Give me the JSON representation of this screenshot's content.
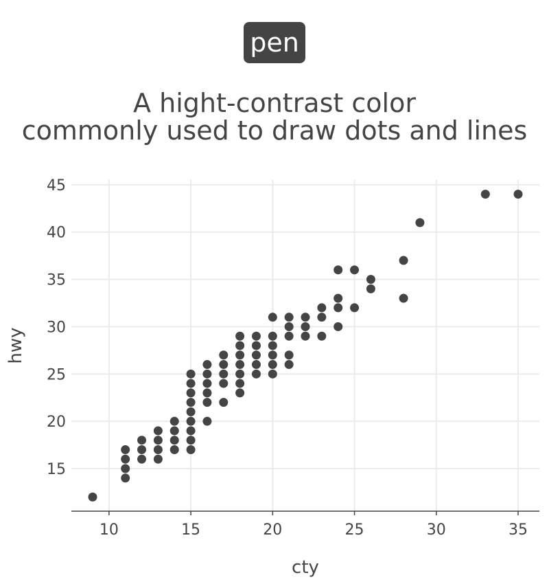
{
  "badge": {
    "label": "pen",
    "color": "#444444"
  },
  "title": {
    "line1": "A hight-contrast color",
    "line2": "commonly used to draw dots and lines"
  },
  "chart_data": {
    "type": "scatter",
    "xlabel": "cty",
    "ylabel": "hwy",
    "xlim": [
      7.7,
      36.3
    ],
    "ylim": [
      10.5,
      45.5
    ],
    "x_ticks": [
      10,
      15,
      20,
      25,
      30,
      35
    ],
    "y_ticks": [
      15,
      20,
      25,
      30,
      35,
      40,
      45
    ],
    "grid": true,
    "point_color": "#444444",
    "points": [
      [
        9,
        12
      ],
      [
        11,
        14
      ],
      [
        11,
        15
      ],
      [
        11,
        16
      ],
      [
        11,
        17
      ],
      [
        12,
        16
      ],
      [
        12,
        17
      ],
      [
        12,
        18
      ],
      [
        13,
        16
      ],
      [
        13,
        17
      ],
      [
        13,
        18
      ],
      [
        13,
        19
      ],
      [
        14,
        17
      ],
      [
        14,
        18
      ],
      [
        14,
        19
      ],
      [
        14,
        20
      ],
      [
        15,
        17
      ],
      [
        15,
        18
      ],
      [
        15,
        19
      ],
      [
        15,
        20
      ],
      [
        15,
        21
      ],
      [
        15,
        22
      ],
      [
        15,
        23
      ],
      [
        15,
        24
      ],
      [
        15,
        25
      ],
      [
        16,
        20
      ],
      [
        16,
        22
      ],
      [
        16,
        23
      ],
      [
        16,
        24
      ],
      [
        16,
        25
      ],
      [
        16,
        26
      ],
      [
        17,
        22
      ],
      [
        17,
        24
      ],
      [
        17,
        25
      ],
      [
        17,
        26
      ],
      [
        17,
        27
      ],
      [
        18,
        23
      ],
      [
        18,
        24
      ],
      [
        18,
        25
      ],
      [
        18,
        26
      ],
      [
        18,
        27
      ],
      [
        18,
        28
      ],
      [
        18,
        29
      ],
      [
        19,
        25
      ],
      [
        19,
        26
      ],
      [
        19,
        27
      ],
      [
        19,
        28
      ],
      [
        19,
        29
      ],
      [
        20,
        25
      ],
      [
        20,
        26
      ],
      [
        20,
        27
      ],
      [
        20,
        28
      ],
      [
        20,
        29
      ],
      [
        20,
        31
      ],
      [
        21,
        26
      ],
      [
        21,
        27
      ],
      [
        21,
        29
      ],
      [
        21,
        30
      ],
      [
        21,
        31
      ],
      [
        22,
        29
      ],
      [
        22,
        30
      ],
      [
        22,
        31
      ],
      [
        23,
        29
      ],
      [
        23,
        31
      ],
      [
        23,
        32
      ],
      [
        24,
        30
      ],
      [
        24,
        32
      ],
      [
        24,
        33
      ],
      [
        24,
        36
      ],
      [
        25,
        32
      ],
      [
        25,
        36
      ],
      [
        26,
        34
      ],
      [
        26,
        35
      ],
      [
        28,
        33
      ],
      [
        28,
        37
      ],
      [
        29,
        41
      ],
      [
        33,
        44
      ],
      [
        35,
        44
      ]
    ]
  }
}
